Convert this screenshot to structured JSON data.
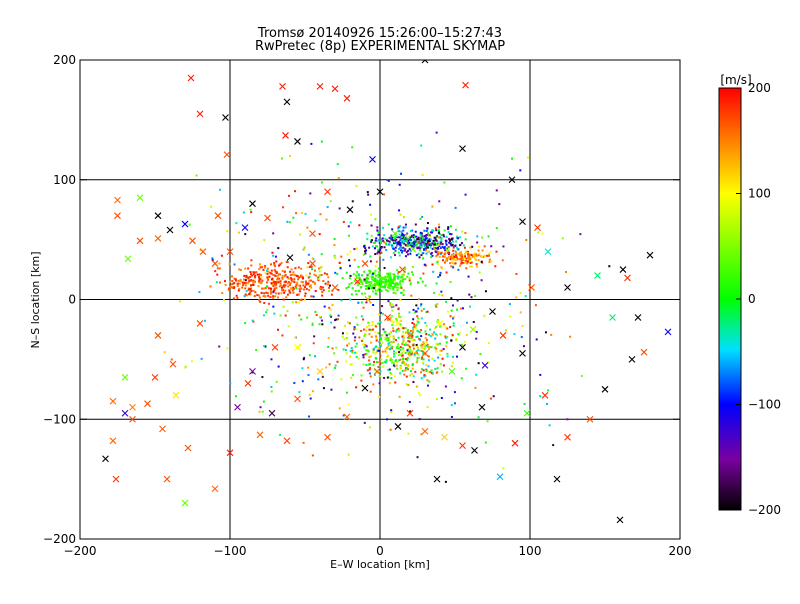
{
  "chart_data": {
    "type": "scatter",
    "title_line1": "Tromsø 20140926 15:26:00–15:27:43",
    "title_line2": "RwPretec (8p) EXPERIMENTAL SKYMAP",
    "xlabel": "E–W location [km]",
    "ylabel": "N–S location [km]",
    "xlim": [
      -200,
      200
    ],
    "ylim": [
      -200,
      200
    ],
    "x_ticks": [
      -200,
      -100,
      0,
      100,
      200
    ],
    "y_ticks": [
      -200,
      -100,
      0,
      100,
      200
    ],
    "grid_lines": {
      "x": [
        -100,
        0,
        100
      ],
      "y": [
        -100,
        0,
        100
      ]
    },
    "colorbar": {
      "label": "[m/s]",
      "range": [
        -200,
        200
      ],
      "ticks": [
        200,
        100,
        0,
        -100,
        -200
      ],
      "colors": [
        "#000000",
        "#7a00a0",
        "#0000ff",
        "#00e0ff",
        "#00ff00",
        "#ffff00",
        "#ff0000"
      ]
    },
    "series": [
      {
        "marker": "cross",
        "points": [
          [
            -183,
            -133,
            -200
          ],
          [
            -178,
            -118,
            160
          ],
          [
            -176,
            -150,
            180
          ],
          [
            -165,
            -100,
            170
          ],
          [
            -170,
            -65,
            40
          ],
          [
            -178,
            -85,
            160
          ],
          [
            -165,
            -90,
            150
          ],
          [
            -155,
            -87,
            170
          ],
          [
            -145,
            -108,
            165
          ],
          [
            -142,
            -150,
            170
          ],
          [
            -136,
            -80,
            110
          ],
          [
            -130,
            -170,
            40
          ],
          [
            -128,
            -124,
            170
          ],
          [
            -110,
            -158,
            160
          ],
          [
            -100,
            -128,
            190
          ],
          [
            -95,
            -90,
            -150
          ],
          [
            -88,
            -70,
            180
          ],
          [
            -80,
            -113,
            160
          ],
          [
            -72,
            -95,
            -180
          ],
          [
            -62,
            -118,
            170
          ],
          [
            -55,
            -83,
            170
          ],
          [
            -40,
            -60,
            120
          ],
          [
            -35,
            -115,
            170
          ],
          [
            -22,
            -98,
            160
          ],
          [
            -10,
            -74,
            -200
          ],
          [
            -2,
            -60,
            160
          ],
          [
            12,
            -106,
            -200
          ],
          [
            20,
            -95,
            180
          ],
          [
            30,
            -110,
            160
          ],
          [
            38,
            -150,
            -200
          ],
          [
            43,
            -115,
            120
          ],
          [
            55,
            -122,
            180
          ],
          [
            63,
            -126,
            -200
          ],
          [
            68,
            -90,
            -200
          ],
          [
            80,
            -148,
            -60
          ],
          [
            90,
            -120,
            190
          ],
          [
            98,
            -95,
            20
          ],
          [
            110,
            -80,
            180
          ],
          [
            118,
            -150,
            -200
          ],
          [
            125,
            -115,
            180
          ],
          [
            140,
            -100,
            170
          ],
          [
            160,
            -184,
            -200
          ],
          [
            150,
            -75,
            -200
          ],
          [
            168,
            -50,
            -200
          ],
          [
            176,
            -44,
            170
          ],
          [
            155,
            -15,
            -20
          ],
          [
            172,
            -15,
            -200
          ],
          [
            192,
            -27,
            -100
          ],
          [
            145,
            20,
            -20
          ],
          [
            165,
            18,
            180
          ],
          [
            162,
            25,
            -200
          ],
          [
            180,
            37,
            -200
          ],
          [
            125,
            10,
            -200
          ],
          [
            112,
            40,
            -40
          ],
          [
            105,
            60,
            180
          ],
          [
            95,
            65,
            -200
          ],
          [
            88,
            100,
            -200
          ],
          [
            55,
            126,
            -200
          ],
          [
            57,
            179,
            190
          ],
          [
            30,
            200,
            -200
          ],
          [
            -5,
            117,
            -100
          ],
          [
            -55,
            132,
            -200
          ],
          [
            -63,
            137,
            190
          ],
          [
            -65,
            178,
            190
          ],
          [
            -62,
            165,
            -200
          ],
          [
            -40,
            178,
            190
          ],
          [
            -30,
            176,
            190
          ],
          [
            -22,
            168,
            190
          ],
          [
            -102,
            121,
            170
          ],
          [
            -103,
            152,
            -200
          ],
          [
            -120,
            155,
            190
          ],
          [
            -126,
            185,
            190
          ],
          [
            -148,
            51,
            160
          ],
          [
            -160,
            49,
            170
          ],
          [
            -168,
            34,
            40
          ],
          [
            -175,
            83,
            160
          ],
          [
            -175,
            70,
            170
          ],
          [
            -160,
            85,
            40
          ],
          [
            -148,
            70,
            -200
          ],
          [
            -140,
            58,
            -200
          ],
          [
            -130,
            63,
            -100
          ],
          [
            -125,
            49,
            170
          ],
          [
            -118,
            40,
            170
          ],
          [
            -108,
            70,
            170
          ],
          [
            -100,
            40,
            170
          ],
          [
            -90,
            60,
            -100
          ],
          [
            -85,
            80,
            -200
          ],
          [
            -75,
            68,
            170
          ],
          [
            -60,
            35,
            -200
          ],
          [
            -45,
            55,
            170
          ],
          [
            -35,
            90,
            180
          ],
          [
            -20,
            75,
            -200
          ],
          [
            -10,
            30,
            170
          ],
          [
            0,
            90,
            -200
          ],
          [
            10,
            55,
            40
          ],
          [
            15,
            25,
            170
          ],
          [
            22,
            42,
            40
          ],
          [
            -170,
            -95,
            -120
          ],
          [
            -150,
            -65,
            180
          ],
          [
            -148,
            -30,
            170
          ],
          [
            -138,
            -54,
            170
          ],
          [
            -120,
            -20,
            170
          ],
          [
            -110,
            30,
            170
          ],
          [
            -85,
            -60,
            -150
          ],
          [
            -70,
            -40,
            180
          ],
          [
            -55,
            -40,
            100
          ],
          [
            -45,
            30,
            170
          ],
          [
            -30,
            10,
            170
          ],
          [
            -15,
            15,
            180
          ],
          [
            -8,
            0,
            140
          ],
          [
            5,
            -15,
            180
          ],
          [
            12,
            -20,
            100
          ],
          [
            20,
            -30,
            160
          ],
          [
            30,
            -45,
            170
          ],
          [
            40,
            -20,
            100
          ],
          [
            48,
            -60,
            30
          ],
          [
            55,
            -40,
            -200
          ],
          [
            62,
            -25,
            60
          ],
          [
            70,
            -55,
            -120
          ],
          [
            75,
            -10,
            -200
          ],
          [
            82,
            -30,
            180
          ],
          [
            95,
            -45,
            -200
          ],
          [
            101,
            10,
            170
          ]
        ]
      },
      {
        "marker": "dot",
        "clusters": [
          {
            "center": [
              25,
              48
            ],
            "spread": [
              42,
              16
            ],
            "count": 420,
            "values": [
              -200,
              20
            ]
          },
          {
            "center": [
              0,
              15
            ],
            "spread": [
              30,
              14
            ],
            "count": 260,
            "values": [
              0,
              40
            ]
          },
          {
            "center": [
              -70,
              15
            ],
            "spread": [
              55,
              22
            ],
            "count": 360,
            "values": [
              140,
              200
            ]
          },
          {
            "center": [
              55,
              35
            ],
            "spread": [
              30,
              12
            ],
            "count": 150,
            "values": [
              100,
              200
            ]
          },
          {
            "center": [
              15,
              -40
            ],
            "spread": [
              55,
              40
            ],
            "count": 450,
            "values": [
              -60,
              200
            ]
          },
          {
            "center": [
              0,
              0
            ],
            "spread": [
              170,
              170
            ],
            "count": 550,
            "values": [
              -200,
              200
            ]
          }
        ]
      }
    ]
  }
}
